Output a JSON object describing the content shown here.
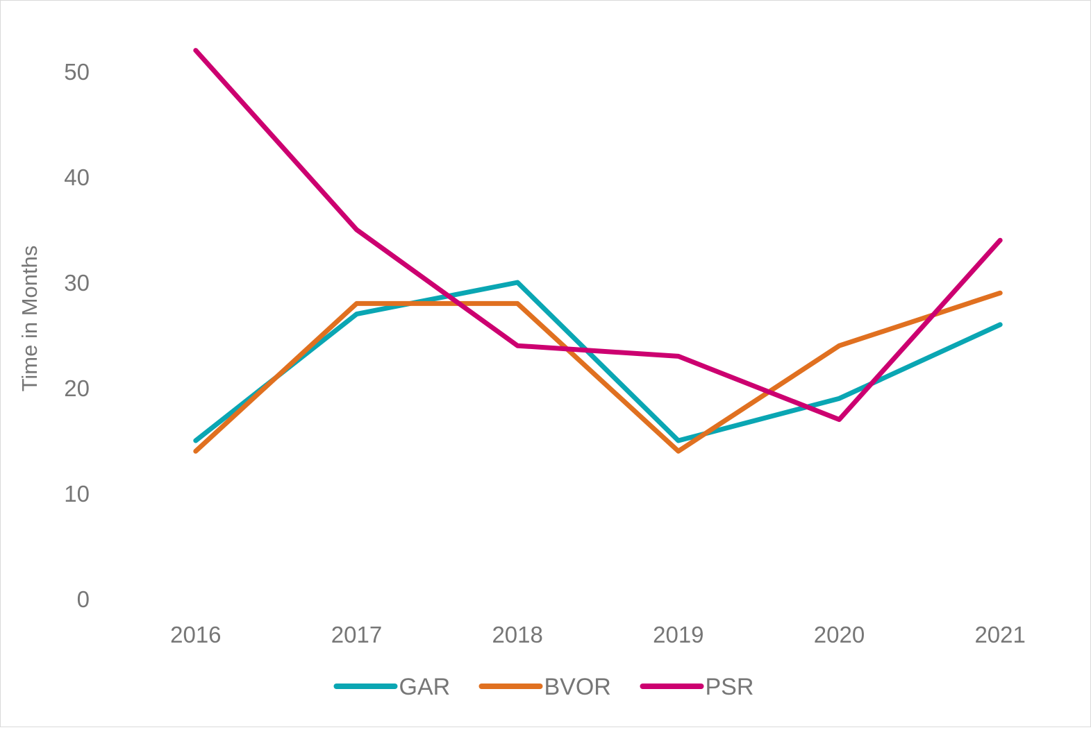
{
  "chart_data": {
    "type": "line",
    "title": "",
    "xlabel": "",
    "ylabel": "Time in Months",
    "categories": [
      "2016",
      "2017",
      "2018",
      "2019",
      "2020",
      "2021"
    ],
    "ylim": [
      0,
      50
    ],
    "yticks": [
      "0",
      "10",
      "20",
      "30",
      "40",
      "50"
    ],
    "grid": false,
    "legend": "bottom-center",
    "series": [
      {
        "name": "GAR",
        "color": "#0aa6b3",
        "values": [
          15,
          27,
          30,
          15,
          19,
          26
        ]
      },
      {
        "name": "BVOR",
        "color": "#e07020",
        "values": [
          14,
          28,
          28,
          14,
          24,
          29
        ]
      },
      {
        "name": "PSR",
        "color": "#cc0070",
        "values": [
          52,
          35,
          24,
          23,
          17,
          34
        ]
      }
    ]
  }
}
